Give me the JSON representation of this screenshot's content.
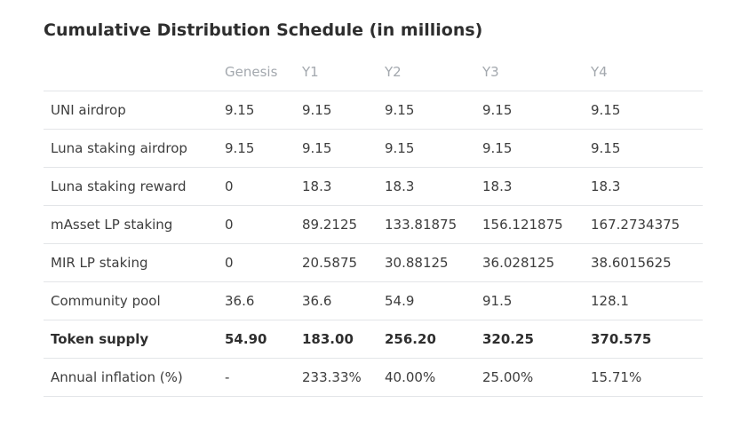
{
  "title": "Cumulative Distribution Schedule (in millions)",
  "table": {
    "headers": [
      "",
      "Genesis",
      "Y1",
      "Y2",
      "Y3",
      "Y4"
    ],
    "rows": [
      {
        "label": "UNI airdrop",
        "values": [
          "9.15",
          "9.15",
          "9.15",
          "9.15",
          "9.15"
        ],
        "bold": false
      },
      {
        "label": "Luna staking airdrop",
        "values": [
          "9.15",
          "9.15",
          "9.15",
          "9.15",
          "9.15"
        ],
        "bold": false
      },
      {
        "label": "Luna staking reward",
        "values": [
          "0",
          "18.3",
          "18.3",
          "18.3",
          "18.3"
        ],
        "bold": false
      },
      {
        "label": "mAsset LP staking",
        "values": [
          "0",
          "89.2125",
          "133.81875",
          "156.121875",
          "167.2734375"
        ],
        "bold": false
      },
      {
        "label": "MIR LP staking",
        "values": [
          "0",
          "20.5875",
          "30.88125",
          "36.028125",
          "38.6015625"
        ],
        "bold": false
      },
      {
        "label": "Community pool",
        "values": [
          "36.6",
          "36.6",
          "54.9",
          "91.5",
          "128.1"
        ],
        "bold": false
      },
      {
        "label": "Token supply",
        "values": [
          "54.90",
          "183.00",
          "256.20",
          "320.25",
          "370.575"
        ],
        "bold": true
      },
      {
        "label": "Annual inflation (%)",
        "values": [
          "-",
          "233.33%",
          "40.00%",
          "25.00%",
          "15.71%"
        ],
        "bold": false
      }
    ]
  }
}
